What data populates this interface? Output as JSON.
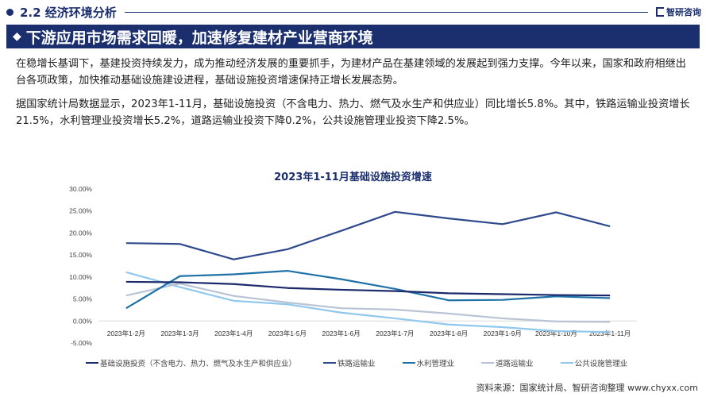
{
  "section": {
    "title": "2.2 经济环境分析",
    "brand": "智研咨询"
  },
  "banner": {
    "icon": "diamond-icon",
    "title": "下游应用市场需求回暖，加速修复建材产业营商环境"
  },
  "paragraphs": [
    "在稳增长基调下，基建投资持续发力，成为推动经济发展的重要抓手，为建材产品在基建领域的发展起到强力支撑。今年以来，国家和政府相继出台各项政策，加快推动基础设施建设进程，基础设施投资增速保持正增长发展态势。",
    "据国家统计局数据显示，2023年1-11月，基础设施投资（不含电力、热力、燃气及水生产和供应业）同比增长5.8%。其中，铁路运输业投资增长21.5%，水利管理业投资增长5.2%，道路运输业投资下降0.2%，公共设施管理业投资下降2.5%。"
  ],
  "chart_data": {
    "type": "line",
    "title": "2023年1-11月基础设施投资增速",
    "xlabel": "",
    "ylabel": "",
    "ylim": [
      -5,
      30
    ],
    "yticks": [
      "30.00%",
      "25.00%",
      "20.00%",
      "15.00%",
      "10.00%",
      "5.00%",
      "0.00%",
      "-5.00%"
    ],
    "ytick_values": [
      30,
      25,
      20,
      15,
      10,
      5,
      0,
      -5
    ],
    "categories": [
      "2023年1-2月",
      "2023年1-3月",
      "2023年1-4月",
      "2023年1-5月",
      "2023年1-6月",
      "2023年1-7月",
      "2023年1-8月",
      "2023年1-9月",
      "2023年1-10月",
      "2023年1-11月"
    ],
    "legend_position": "bottom",
    "series": [
      {
        "name": "基础设施投资（不含电力、热力、燃气及水生产和供应业）",
        "color": "#1c2a6b",
        "values": [
          8.9,
          8.8,
          8.4,
          7.5,
          7.1,
          6.8,
          6.3,
          6.1,
          5.9,
          5.8
        ]
      },
      {
        "name": "铁路运输业",
        "color": "#2f4a8c",
        "values": [
          17.7,
          17.5,
          14.0,
          16.3,
          20.5,
          24.8,
          23.3,
          22.0,
          24.7,
          21.5
        ]
      },
      {
        "name": "水利管理业",
        "color": "#1f72a8",
        "values": [
          2.9,
          10.2,
          10.6,
          11.4,
          9.5,
          7.3,
          4.7,
          4.8,
          5.6,
          5.2
        ]
      },
      {
        "name": "道路运输业",
        "color": "#b8c4d6",
        "values": [
          5.8,
          8.5,
          5.7,
          4.2,
          2.9,
          2.6,
          1.7,
          0.6,
          -0.1,
          -0.2
        ]
      },
      {
        "name": "公共设施管理业",
        "color": "#8fc8ec",
        "values": [
          11.1,
          7.7,
          4.6,
          3.8,
          1.9,
          0.6,
          -0.8,
          -1.4,
          -2.3,
          -2.5
        ]
      }
    ]
  },
  "source": "资料来源：国家统计局、智研咨询整理 www.chyxx.com"
}
